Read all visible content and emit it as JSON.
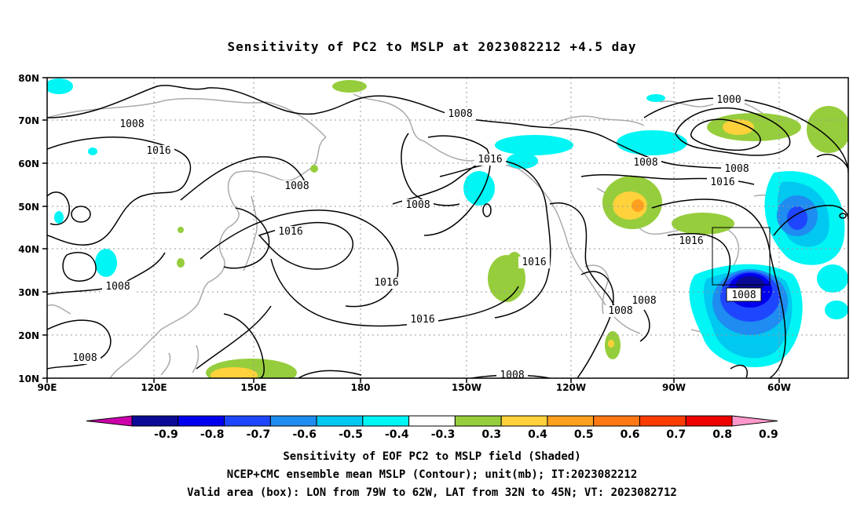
{
  "title": "Sensitivity of PC2 to MSLP at 2023082212 +4.5 day",
  "lat_labels": [
    "80N",
    "70N",
    "60N",
    "50N",
    "40N",
    "30N",
    "20N",
    "10N"
  ],
  "lon_labels": [
    "90E",
    "120E",
    "150E",
    "180",
    "150W",
    "120W",
    "90W",
    "60W"
  ],
  "isobar_labels": [
    "1008",
    "1016",
    "1008",
    "1008",
    "1016",
    "1008",
    "1016",
    "1016",
    "1016",
    "1008",
    "1016",
    "1008",
    "1000",
    "1008",
    "1016",
    "1016",
    "1008",
    "1008",
    "1008",
    "1008",
    "1008"
  ],
  "colorbar": {
    "labels": [
      "-0.9",
      "-0.8",
      "-0.7",
      "-0.6",
      "-0.5",
      "-0.4",
      "-0.3",
      "0.3",
      "0.4",
      "0.5",
      "0.6",
      "0.7",
      "0.8",
      "0.9"
    ],
    "colors": [
      "#cc00aa",
      "#0a0a96",
      "#0000ee",
      "#1e46ff",
      "#1e8cf0",
      "#00c8f0",
      "#00f5f5",
      "#ffffff",
      "#96cd3c",
      "#ffd23c",
      "#ffa01e",
      "#ff7814",
      "#ff3c00",
      "#ee0000",
      "#ff99cc"
    ]
  },
  "captions": {
    "line1": "Sensitivity of EOF PC2 to MSLP field (Shaded)",
    "line2": "NCEP+CMC ensemble mean MSLP (Contour); unit(mb); IT:2023082212",
    "line3": "Valid area (box): LON from 79W to 62W, LAT from 32N to 45N; VT: 2023082712"
  }
}
